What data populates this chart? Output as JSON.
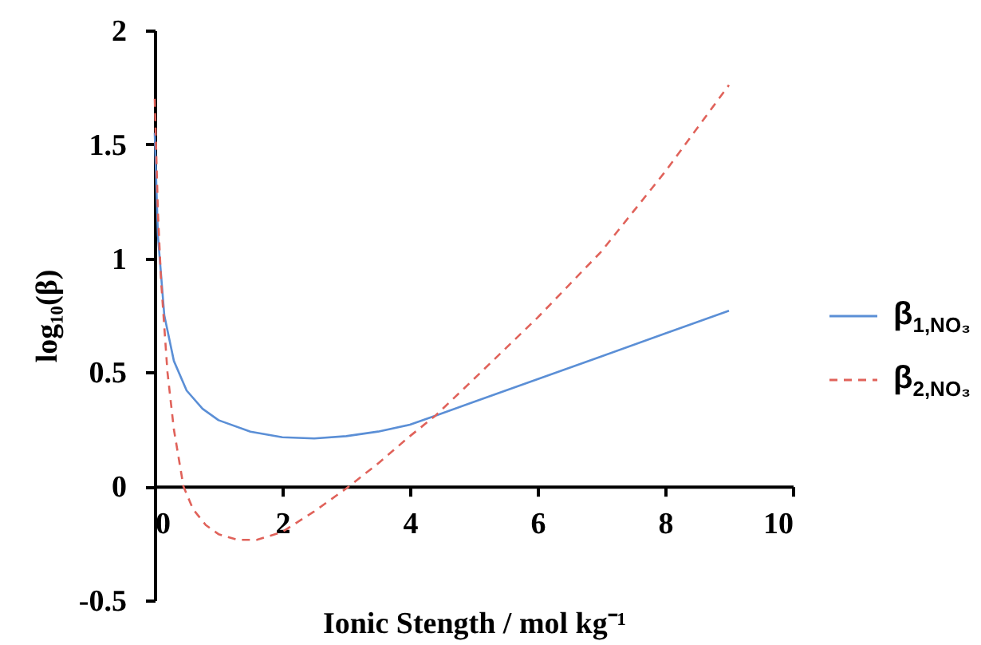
{
  "chart_data": {
    "type": "line",
    "xlabel": "Ionic Stength / mol kg⁻¹",
    "ylabel": "log₁₀(β)",
    "xlim": [
      0,
      10
    ],
    "xticks": [
      0,
      2,
      4,
      6,
      8,
      10
    ],
    "ylim": [
      -0.5,
      2
    ],
    "yticks": [
      -0.5,
      0,
      0.5,
      1,
      1.5,
      2
    ],
    "grid": false,
    "legend": "right",
    "marker": "none",
    "series": [
      {
        "name": "β$_{1,NO₃}$",
        "color": "#5b8fd6",
        "line_style": "solid",
        "x": [
          0,
          0.05,
          0.15,
          0.3,
          0.5,
          0.75,
          1,
          1.5,
          2,
          2.5,
          3,
          3.5,
          4,
          4.4,
          5,
          6,
          7,
          8,
          9
        ],
        "values": [
          1.55,
          1.1,
          0.75,
          0.55,
          0.42,
          0.34,
          0.29,
          0.24,
          0.215,
          0.21,
          0.22,
          0.24,
          0.27,
          0.31,
          0.37,
          0.47,
          0.57,
          0.67,
          0.77
        ]
      },
      {
        "name": "β$_{2,NO₃}$",
        "color": "#e0625a",
        "line_style": "dashed",
        "x": [
          0,
          0.05,
          0.1,
          0.2,
          0.3,
          0.45,
          0.6,
          0.8,
          1,
          1.3,
          1.6,
          2,
          2.5,
          3,
          3.5,
          4,
          4.4,
          5,
          6,
          7,
          8,
          9
        ],
        "values": [
          1.7,
          1.2,
          0.9,
          0.5,
          0.25,
          0.0,
          -0.1,
          -0.17,
          -0.21,
          -0.235,
          -0.235,
          -0.2,
          -0.11,
          -0.01,
          0.1,
          0.22,
          0.31,
          0.47,
          0.74,
          1.03,
          1.38,
          1.76
        ]
      }
    ]
  }
}
